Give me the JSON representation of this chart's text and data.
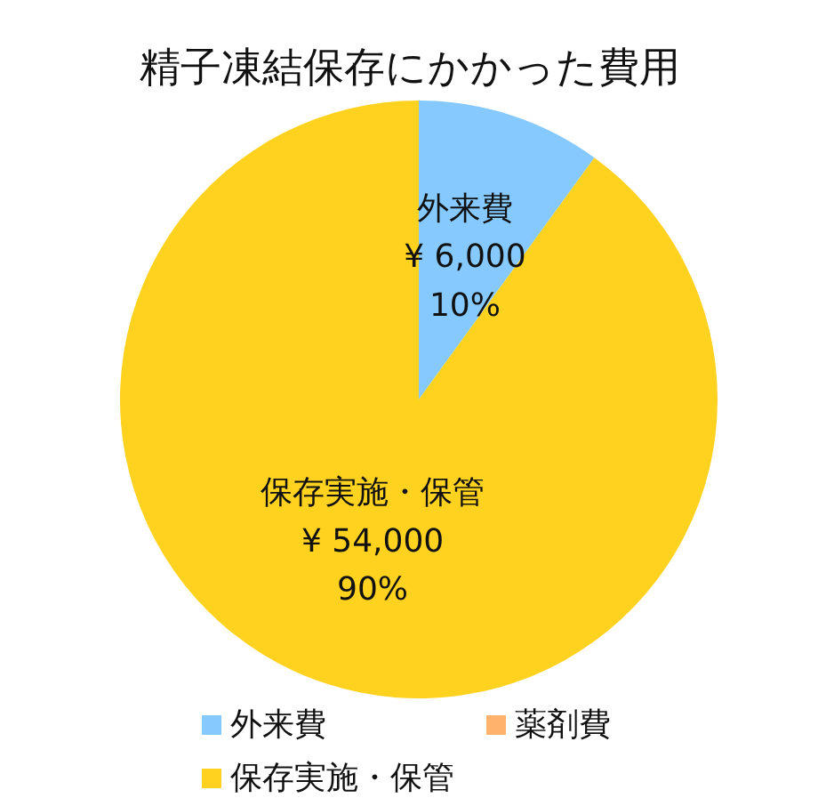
{
  "chart_data": {
    "type": "pie",
    "title": "精子凍結保存にかかった費用",
    "categories": [
      "外来費",
      "薬剤費",
      "保存実施・保管"
    ],
    "values": [
      6000,
      0,
      54000
    ],
    "colors": [
      "#85c9ff",
      "#ffb26b",
      "#ffd21f"
    ],
    "value_labels": [
      "¥ 6,000\n10%",
      null,
      "¥ 54,000\n90%"
    ],
    "legend": "bottom"
  }
}
